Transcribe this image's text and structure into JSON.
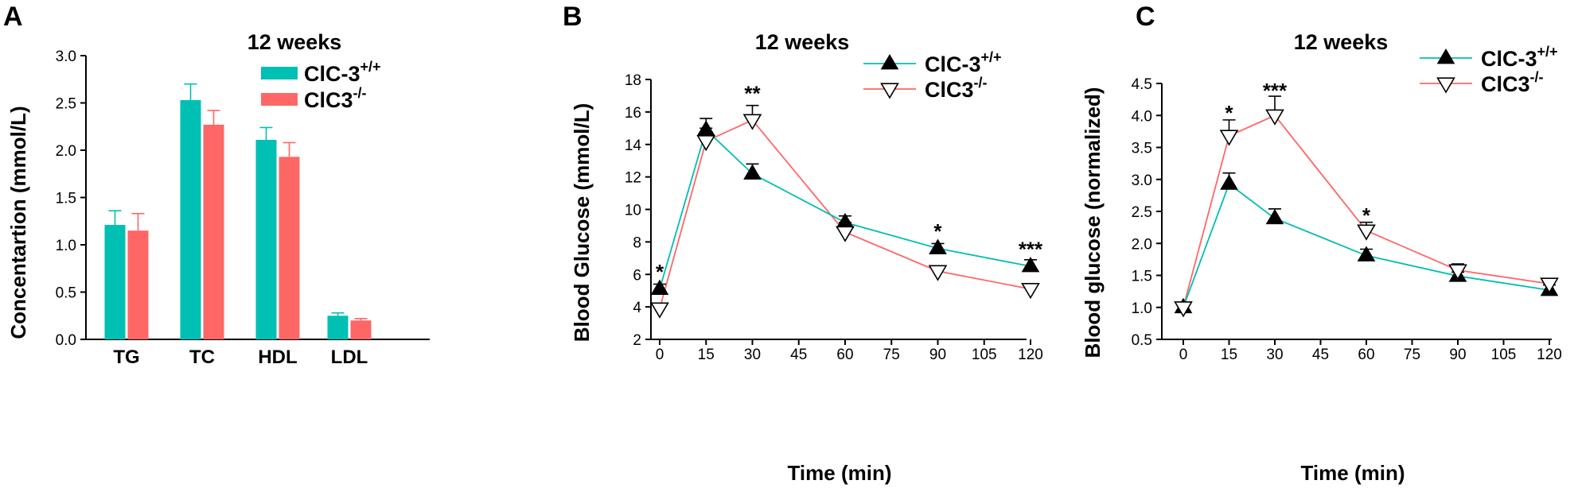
{
  "colors": {
    "wt": "#00bfb3",
    "ko": "#ff6666",
    "marker": "#000000"
  },
  "chart_data": [
    {
      "panel": "A",
      "type": "bar",
      "title": "12 weeks",
      "xlabel": "",
      "ylabel": "Concentartion (mmol/L)",
      "ylim": [
        0,
        3.0
      ],
      "yticks": [
        "0.0",
        "0.5",
        "1.0",
        "1.5",
        "2.0",
        "2.5",
        "3.0"
      ],
      "categories": [
        "TG",
        "TC",
        "HDL",
        "LDL"
      ],
      "series": [
        {
          "name": "ClC-3",
          "sup": "+/+",
          "values": [
            1.21,
            2.53,
            2.11,
            0.25
          ],
          "errors": [
            0.15,
            0.17,
            0.13,
            0.03
          ]
        },
        {
          "name": "ClC3",
          "sup": "-/-",
          "values": [
            1.15,
            2.27,
            1.93,
            0.2
          ],
          "errors": [
            0.18,
            0.15,
            0.15,
            0.02
          ]
        }
      ],
      "legend": "top-right"
    },
    {
      "panel": "B",
      "type": "line",
      "title": "12 weeks",
      "xlabel": "Time (min)",
      "ylabel": "Blood Glucose (mmol/L)",
      "xlim": [
        -8,
        120
      ],
      "ylim": [
        2,
        18
      ],
      "xticks": [
        "0",
        "15",
        "30",
        "45",
        "60",
        "75",
        "90",
        "105",
        "120"
      ],
      "yticks": [
        "2",
        "4",
        "6",
        "8",
        "10",
        "12",
        "14",
        "16",
        "18"
      ],
      "x": [
        0,
        15,
        30,
        60,
        90,
        120
      ],
      "series": [
        {
          "name": "ClC-3",
          "sup": "+/+",
          "values": [
            5.1,
            14.9,
            12.2,
            9.2,
            7.6,
            6.5
          ],
          "errors": [
            0.3,
            0.7,
            0.6,
            0.4,
            0.3,
            0.4
          ]
        },
        {
          "name": "ClC3",
          "sup": "-/-",
          "values": [
            3.9,
            14.2,
            15.5,
            8.6,
            6.2,
            5.1
          ],
          "errors": [
            0.3,
            0.8,
            0.9,
            0.6,
            0.2,
            0.2
          ]
        }
      ],
      "annotations": [
        {
          "x": 0,
          "y": 6.2,
          "text": "*"
        },
        {
          "x": 30,
          "y": 17.2,
          "text": "**"
        },
        {
          "x": 90,
          "y": 8.7,
          "text": "*"
        },
        {
          "x": 120,
          "y": 7.6,
          "text": "***"
        }
      ],
      "legend": "top-right"
    },
    {
      "panel": "C",
      "type": "line",
      "title": "12 weeks",
      "xlabel": "Time (min)",
      "ylabel": "Blood glucose (normalized)",
      "xlim": [
        -8,
        120
      ],
      "ylim": [
        0.5,
        4.5
      ],
      "xticks": [
        "0",
        "15",
        "30",
        "45",
        "60",
        "75",
        "90",
        "105",
        "120"
      ],
      "yticks": [
        "0.5",
        "1.0",
        "1.5",
        "2.0",
        "2.5",
        "3.0",
        "3.5",
        "4.0",
        "4.5"
      ],
      "x": [
        0,
        15,
        30,
        60,
        90,
        120
      ],
      "series": [
        {
          "name": "ClC-3",
          "sup": "+/+",
          "values": [
            1.0,
            2.93,
            2.39,
            1.81,
            1.49,
            1.27
          ],
          "errors": [
            0.03,
            0.17,
            0.15,
            0.1,
            0.06,
            0.08
          ]
        },
        {
          "name": "ClC3",
          "sup": "-/-",
          "values": [
            1.0,
            3.68,
            4.0,
            2.2,
            1.58,
            1.37
          ],
          "errors": [
            0.03,
            0.25,
            0.3,
            0.13,
            0.1,
            0.08
          ]
        }
      ],
      "annotations": [
        {
          "x": 15,
          "y": 4.05,
          "text": "*"
        },
        {
          "x": 30,
          "y": 4.4,
          "text": "***"
        },
        {
          "x": 60,
          "y": 2.45,
          "text": "*"
        }
      ],
      "legend": "top-right"
    }
  ]
}
